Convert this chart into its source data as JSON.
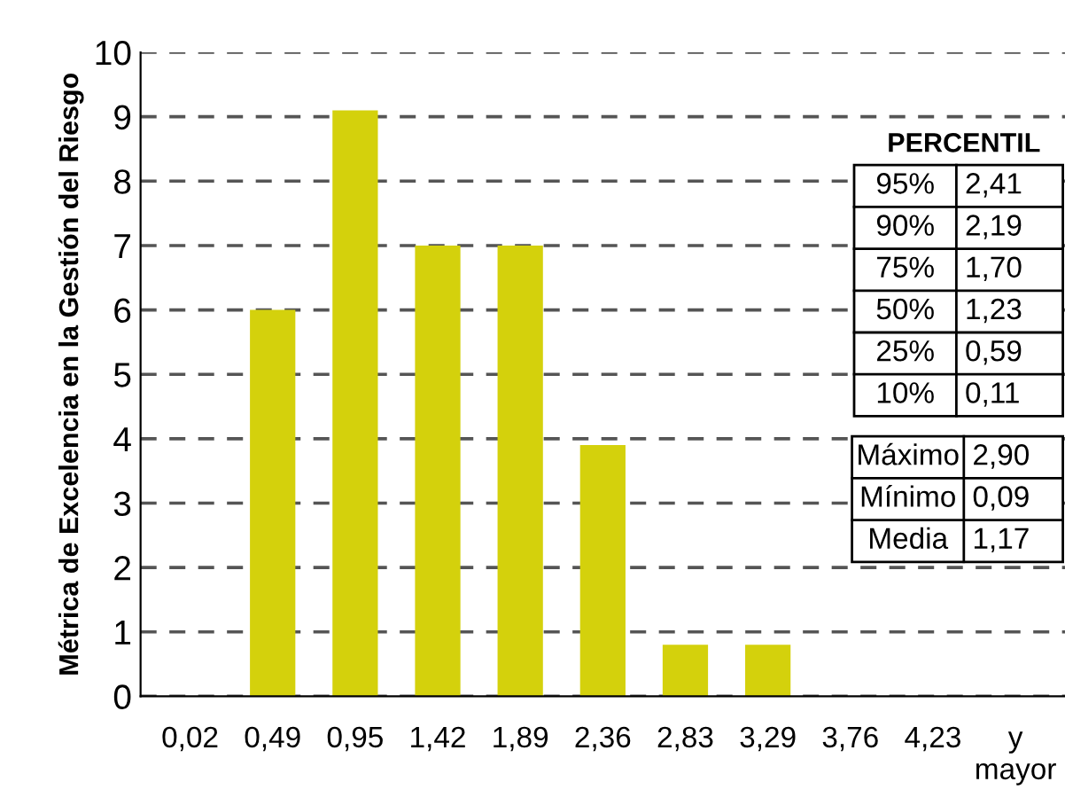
{
  "chart_data": {
    "type": "bar",
    "ylabel": "Métrica de Excelencia en la Gestión del Riesgo",
    "categories": [
      "0,02",
      "0,49",
      "0,95",
      "1,42",
      "1,89",
      "2,36",
      "2,83",
      "3,29",
      "3,76",
      "4,23",
      "y\nmayor"
    ],
    "values": [
      0,
      6,
      9.1,
      7,
      7,
      3.9,
      0.8,
      0.8,
      0,
      0,
      0
    ],
    "color": "#d4d10c",
    "ylim": [
      0,
      10
    ],
    "yticks": [
      0,
      1,
      2,
      3,
      4,
      5,
      6,
      7,
      8,
      9,
      10
    ],
    "grid": "y",
    "legend": false,
    "annotations": [
      "PERCENTIL",
      "95%",
      "2,41",
      "90%",
      "2,19",
      "75%",
      "1,70",
      "50%",
      "1,23",
      "25%",
      "0,59",
      "10%",
      "0,11",
      "Máximo",
      "2,90",
      "Mínimo",
      "0,09",
      "Media",
      "1,17"
    ]
  }
}
